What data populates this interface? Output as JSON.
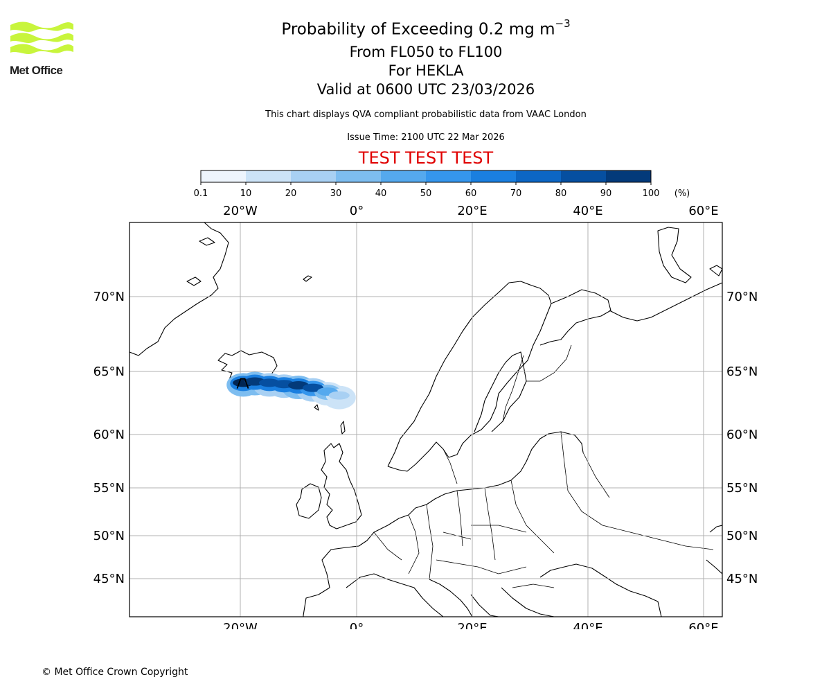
{
  "titles": {
    "main_prefix": "Probability of Exceeding 0.2 mg m",
    "main_exponent": "−3",
    "flight_levels": "From FL050 to FL100",
    "volcano": "For HEKLA",
    "valid_time": "Valid at 0600 UTC 23/03/2026",
    "subtitle": "This chart displays QVA compliant probabilistic data from VAAC London",
    "issue_time": "Issue Time: 2100 UTC 22 Mar 2026",
    "test_banner": "TEST TEST TEST"
  },
  "logo": {
    "text": "Met Office",
    "color": "#c8f53c"
  },
  "copyright": "© Met Office Crown Copyright",
  "colorbar": {
    "tick_labels": [
      "0.1",
      "10",
      "20",
      "30",
      "40",
      "50",
      "60",
      "70",
      "80",
      "90",
      "100"
    ],
    "unit_label": "(%)",
    "colors": [
      "#eef5fd",
      "#cce3f7",
      "#a8d0f3",
      "#7dbdf0",
      "#55a9ee",
      "#3596ed",
      "#1a7fe0",
      "#0c66c4",
      "#064fa0",
      "#033a7a",
      "#012553"
    ]
  },
  "map": {
    "lon_labels": [
      "20°W",
      "0°",
      "20°E",
      "40°E",
      "60°E"
    ],
    "lat_labels": [
      "70°N",
      "65°N",
      "60°N",
      "55°N",
      "50°N",
      "45°N"
    ],
    "volcano_marker": {
      "name": "HEKLA",
      "lat": 63.98,
      "lon": -19.7
    },
    "plume": [
      {
        "lon": -19.5,
        "lat": 64.1,
        "probability": 92
      },
      {
        "lon": -17.5,
        "lat": 64.2,
        "probability": 88
      },
      {
        "lon": -15.0,
        "lat": 64.1,
        "probability": 80
      },
      {
        "lon": -12.5,
        "lat": 64.0,
        "probability": 78
      },
      {
        "lon": -10.0,
        "lat": 63.9,
        "probability": 85
      },
      {
        "lon": -7.5,
        "lat": 63.7,
        "probability": 72
      },
      {
        "lon": -5.0,
        "lat": 63.4,
        "probability": 40
      },
      {
        "lon": -3.0,
        "lat": 63.1,
        "probability": 15
      }
    ]
  }
}
